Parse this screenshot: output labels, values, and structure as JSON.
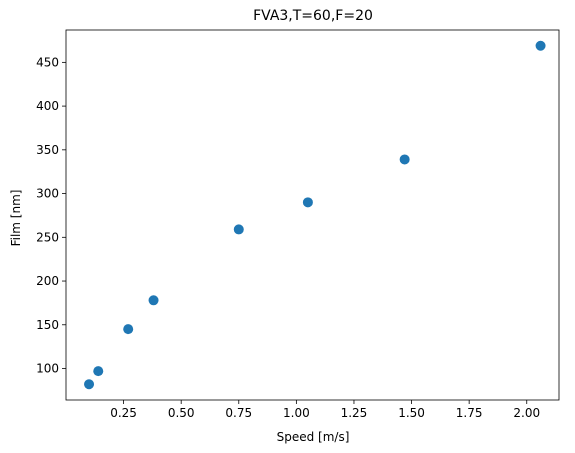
{
  "chart_data": {
    "type": "scatter",
    "title": "FVA3,T=60,F=20",
    "xlabel": "Speed [m/s]",
    "ylabel": "Film [nm]",
    "xlim": [
      0.0,
      2.14
    ],
    "ylim": [
      64,
      487
    ],
    "grid": false,
    "xticks": [
      0.25,
      0.5,
      0.75,
      1.0,
      1.25,
      1.5,
      1.75,
      2.0
    ],
    "xtick_labels": [
      "0.25",
      "0.50",
      "0.75",
      "1.00",
      "1.25",
      "1.50",
      "1.75",
      "2.00"
    ],
    "yticks": [
      100,
      150,
      200,
      250,
      300,
      350,
      400,
      450
    ],
    "ytick_labels": [
      "100",
      "150",
      "200",
      "250",
      "300",
      "350",
      "400",
      "450"
    ],
    "marker_color": "#1f77b4",
    "points": [
      {
        "x": 0.1,
        "y": 82
      },
      {
        "x": 0.14,
        "y": 97
      },
      {
        "x": 0.27,
        "y": 145
      },
      {
        "x": 0.38,
        "y": 178
      },
      {
        "x": 0.75,
        "y": 259
      },
      {
        "x": 1.05,
        "y": 290
      },
      {
        "x": 1.47,
        "y": 339
      },
      {
        "x": 2.06,
        "y": 469
      }
    ]
  }
}
